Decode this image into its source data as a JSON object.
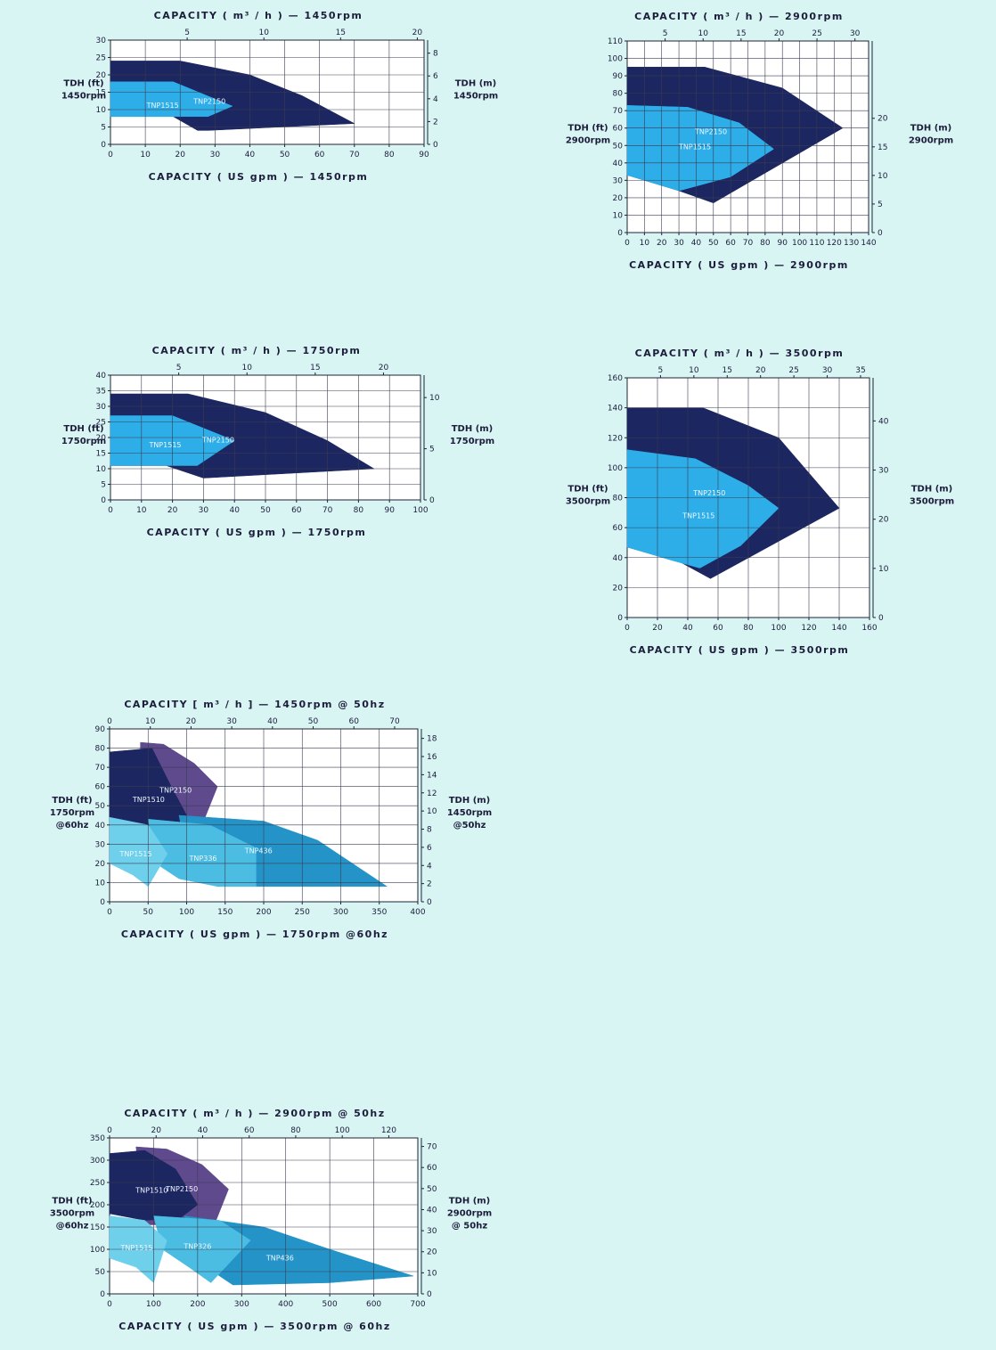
{
  "chart_data": [
    {
      "id": "c1",
      "type": "area",
      "title_top": "CAPACITY ( m³ / h ) — 1450rpm",
      "xlabel": "CAPACITY ( US gpm ) — 1450rpm",
      "ylabel_left": [
        "TDH (ft)",
        "1450rpm"
      ],
      "ylabel_right": [
        "TDH (m)",
        "1450rpm"
      ],
      "xlim": [
        0,
        90
      ],
      "xticks": [
        0,
        10,
        20,
        30,
        40,
        50,
        60,
        70,
        80,
        90
      ],
      "ylim": [
        0,
        30
      ],
      "yticks": [
        0,
        5,
        10,
        15,
        20,
        25,
        30
      ],
      "top_ticks": [
        5,
        10,
        15,
        20
      ],
      "top_factor": 4.403,
      "right_ticks": [
        0,
        2,
        4,
        6,
        8
      ],
      "right_factor": 0.3048,
      "regions": [
        {
          "label": "TNP2150",
          "color": "#1c2660",
          "points": [
            [
              0,
              24
            ],
            [
              20,
              24
            ],
            [
              40,
              20
            ],
            [
              55,
              14
            ],
            [
              70,
              6
            ],
            [
              28,
              4
            ],
            [
              25,
              4
            ],
            [
              18,
              8
            ],
            [
              0,
              8
            ]
          ]
        },
        {
          "label": "TNP1515",
          "color": "#2eaee8",
          "points": [
            [
              0,
              18
            ],
            [
              18,
              18
            ],
            [
              35,
              11
            ],
            [
              28,
              8
            ],
            [
              16,
              8
            ],
            [
              8,
              8
            ],
            [
              0,
              8
            ]
          ]
        }
      ]
    },
    {
      "id": "c2",
      "type": "area",
      "title_top": "CAPACITY ( m³ / h ) — 2900rpm",
      "xlabel": "CAPACITY ( US gpm ) — 2900rpm",
      "ylabel_left": [
        "TDH (ft)",
        "2900rpm"
      ],
      "ylabel_right": [
        "TDH (m)",
        "2900rpm"
      ],
      "xlim": [
        0,
        140
      ],
      "xticks": [
        0,
        10,
        20,
        30,
        40,
        50,
        60,
        70,
        80,
        90,
        100,
        110,
        120,
        130,
        140
      ],
      "ylim": [
        0,
        110
      ],
      "yticks": [
        0,
        10,
        20,
        30,
        40,
        50,
        60,
        70,
        80,
        90,
        100,
        110
      ],
      "top_ticks": [
        5,
        10,
        15,
        20,
        25,
        30
      ],
      "top_factor": 4.403,
      "right_ticks": [
        0,
        5,
        10,
        15,
        20
      ],
      "right_factor": 0.3048,
      "regions": [
        {
          "label": "TNP2150",
          "color": "#1c2660",
          "points": [
            [
              0,
              95
            ],
            [
              45,
              95
            ],
            [
              90,
              83
            ],
            [
              125,
              60
            ],
            [
              50,
              17
            ],
            [
              30,
              24
            ],
            [
              0,
              33
            ]
          ]
        },
        {
          "label": "TNP1515",
          "color": "#2eaee8",
          "points": [
            [
              0,
              73
            ],
            [
              35,
              72
            ],
            [
              65,
              63
            ],
            [
              85,
              48
            ],
            [
              60,
              32
            ],
            [
              30,
              24
            ],
            [
              0,
              33
            ]
          ]
        }
      ]
    },
    {
      "id": "c3",
      "type": "area",
      "title_top": "CAPACITY ( m³ / h ) — 1750rpm",
      "xlabel": "CAPACITY ( US gpm ) — 1750rpm",
      "ylabel_left": [
        "TDH (ft)",
        "1750rpm"
      ],
      "ylabel_right": [
        "TDH (m)",
        "1750rpm"
      ],
      "xlim": [
        0,
        100
      ],
      "xticks": [
        0,
        10,
        20,
        30,
        40,
        50,
        60,
        70,
        80,
        90,
        100
      ],
      "ylim": [
        0,
        40
      ],
      "yticks": [
        0,
        5,
        10,
        15,
        20,
        25,
        30,
        35,
        40
      ],
      "top_ticks": [
        5,
        10,
        15,
        20
      ],
      "top_factor": 4.403,
      "right_ticks": [
        0,
        5,
        10
      ],
      "right_factor": 0.3048,
      "regions": [
        {
          "label": "TNP2150",
          "color": "#1c2660",
          "points": [
            [
              0,
              34
            ],
            [
              25,
              34
            ],
            [
              50,
              28
            ],
            [
              70,
              19
            ],
            [
              85,
              10
            ],
            [
              30,
              7
            ],
            [
              18,
              11
            ],
            [
              0,
              11
            ]
          ]
        },
        {
          "label": "TNP1515",
          "color": "#2eaee8",
          "points": [
            [
              0,
              27
            ],
            [
              20,
              27
            ],
            [
              40,
              19
            ],
            [
              28,
              11
            ],
            [
              18,
              11
            ],
            [
              0,
              11
            ]
          ]
        }
      ]
    },
    {
      "id": "c4",
      "type": "area",
      "title_top": "CAPACITY ( m³ / h ) — 3500rpm",
      "xlabel": "CAPACITY ( US gpm ) — 3500rpm",
      "ylabel_left": [
        "TDH (ft)",
        "3500rpm"
      ],
      "ylabel_right": [
        "TDH (m)",
        "3500rpm"
      ],
      "xlim": [
        0,
        160
      ],
      "xticks": [
        0,
        20,
        40,
        60,
        80,
        100,
        120,
        140,
        160
      ],
      "ylim": [
        0,
        160
      ],
      "yticks": [
        0,
        20,
        40,
        60,
        80,
        100,
        120,
        140,
        160
      ],
      "top_ticks": [
        5,
        10,
        15,
        20,
        25,
        30,
        35
      ],
      "top_factor": 4.403,
      "right_ticks": [
        0,
        10,
        20,
        30,
        40
      ],
      "right_factor": 0.3048,
      "regions": [
        {
          "label": "TNP2150",
          "color": "#1c2660",
          "points": [
            [
              0,
              140
            ],
            [
              50,
              140
            ],
            [
              100,
              120
            ],
            [
              140,
              73
            ],
            [
              55,
              26
            ],
            [
              35,
              37
            ],
            [
              0,
              47
            ]
          ]
        },
        {
          "label": "TNP1515",
          "color": "#2eaee8",
          "points": [
            [
              0,
              112
            ],
            [
              45,
              106
            ],
            [
              80,
              88
            ],
            [
              100,
              73
            ],
            [
              75,
              48
            ],
            [
              48,
              33
            ],
            [
              30,
              38
            ],
            [
              0,
              47
            ]
          ]
        }
      ]
    },
    {
      "id": "c5",
      "type": "area",
      "title_top": "CAPACITY [ m³ / h ] — 1450rpm @ 50hz",
      "xlabel": "CAPACITY ( US gpm ) — 1750rpm @60hz",
      "ylabel_left": [
        "TDH (ft)",
        "1750rpm",
        "@60hz"
      ],
      "ylabel_right": [
        "TDH (m)",
        "1450rpm",
        "@50hz"
      ],
      "xlim": [
        0,
        400
      ],
      "xticks": [
        0,
        50,
        100,
        150,
        200,
        250,
        300,
        350,
        400
      ],
      "ylim": [
        0,
        90
      ],
      "yticks": [
        0,
        10,
        20,
        30,
        40,
        50,
        60,
        70,
        80,
        90
      ],
      "top_ticks": [
        0,
        10,
        20,
        30,
        40,
        50,
        60,
        70
      ],
      "top_factor": 5.284,
      "right_ticks": [
        0,
        2,
        4,
        6,
        8,
        10,
        12,
        14,
        16,
        18
      ],
      "right_factor": 0.2116,
      "regions": [
        {
          "label": "TNP2150",
          "color": "#5e4a8c",
          "points": [
            [
              40,
              83
            ],
            [
              70,
              82
            ],
            [
              110,
              72
            ],
            [
              140,
              60
            ],
            [
              120,
              40
            ],
            [
              80,
              35
            ],
            [
              40,
              35
            ]
          ]
        },
        {
          "label": "TNP1510",
          "color": "#1c2660",
          "points": [
            [
              0,
              78
            ],
            [
              55,
              80
            ],
            [
              80,
              60
            ],
            [
              100,
              45
            ],
            [
              80,
              37
            ],
            [
              40,
              35
            ],
            [
              0,
              38
            ]
          ]
        },
        {
          "label": "TNP436",
          "color": "#2494c8",
          "points": [
            [
              90,
              45
            ],
            [
              200,
              42
            ],
            [
              270,
              32
            ],
            [
              360,
              8
            ],
            [
              140,
              8
            ],
            [
              100,
              25
            ]
          ]
        },
        {
          "label": "TNP336",
          "color": "#4bbde2",
          "points": [
            [
              50,
              43
            ],
            [
              130,
              40
            ],
            [
              190,
              28
            ],
            [
              190,
              8
            ],
            [
              140,
              8
            ],
            [
              90,
              12
            ],
            [
              60,
              20
            ]
          ]
        },
        {
          "label": "TNP1515",
          "color": "#6fd0ec",
          "points": [
            [
              0,
              44
            ],
            [
              50,
              40
            ],
            [
              75,
              25
            ],
            [
              50,
              8
            ],
            [
              30,
              14
            ],
            [
              0,
              20
            ]
          ]
        }
      ]
    },
    {
      "id": "c6",
      "type": "area",
      "title_top": "CAPACITY ( m³ / h ) — 2900rpm @ 50hz",
      "xlabel": "CAPACITY ( US gpm ) — 3500rpm @ 60hz",
      "ylabel_left": [
        "TDH (ft)",
        "3500rpm",
        "@60hz"
      ],
      "ylabel_right": [
        "TDH (m)",
        "2900rpm",
        "@ 50hz"
      ],
      "xlim": [
        0,
        700
      ],
      "xticks": [
        0,
        100,
        200,
        300,
        400,
        500,
        600,
        700
      ],
      "ylim": [
        0,
        350
      ],
      "yticks": [
        0,
        50,
        100,
        150,
        200,
        250,
        300,
        350
      ],
      "top_ticks": [
        0,
        20,
        40,
        60,
        80,
        100,
        120
      ],
      "top_factor": 5.284,
      "right_ticks": [
        0,
        10,
        20,
        30,
        40,
        50,
        60,
        70
      ],
      "right_factor": 0.2116,
      "regions": [
        {
          "label": "TNP2150",
          "color": "#5e4a8c",
          "points": [
            [
              60,
              330
            ],
            [
              130,
              325
            ],
            [
              210,
              290
            ],
            [
              270,
              235
            ],
            [
              240,
              160
            ],
            [
              160,
              155
            ],
            [
              80,
              155
            ]
          ]
        },
        {
          "label": "TNP1510",
          "color": "#1c2660",
          "points": [
            [
              0,
              315
            ],
            [
              80,
              322
            ],
            [
              150,
              280
            ],
            [
              200,
              200
            ],
            [
              160,
              170
            ],
            [
              80,
              165
            ],
            [
              0,
              180
            ]
          ]
        },
        {
          "label": "TNP436",
          "color": "#2494c8",
          "points": [
            [
              170,
              175
            ],
            [
              350,
              150
            ],
            [
              500,
              100
            ],
            [
              690,
              40
            ],
            [
              500,
              25
            ],
            [
              280,
              20
            ],
            [
              220,
              60
            ]
          ]
        },
        {
          "label": "TNP326",
          "color": "#4bbde2",
          "points": [
            [
              100,
              175
            ],
            [
              250,
              165
            ],
            [
              320,
              120
            ],
            [
              230,
              25
            ],
            [
              180,
              60
            ],
            [
              120,
              100
            ]
          ]
        },
        {
          "label": "TNP1515",
          "color": "#6fd0ec",
          "points": [
            [
              0,
              175
            ],
            [
              80,
              165
            ],
            [
              130,
              120
            ],
            [
              100,
              25
            ],
            [
              60,
              60
            ],
            [
              0,
              80
            ]
          ]
        }
      ]
    }
  ]
}
